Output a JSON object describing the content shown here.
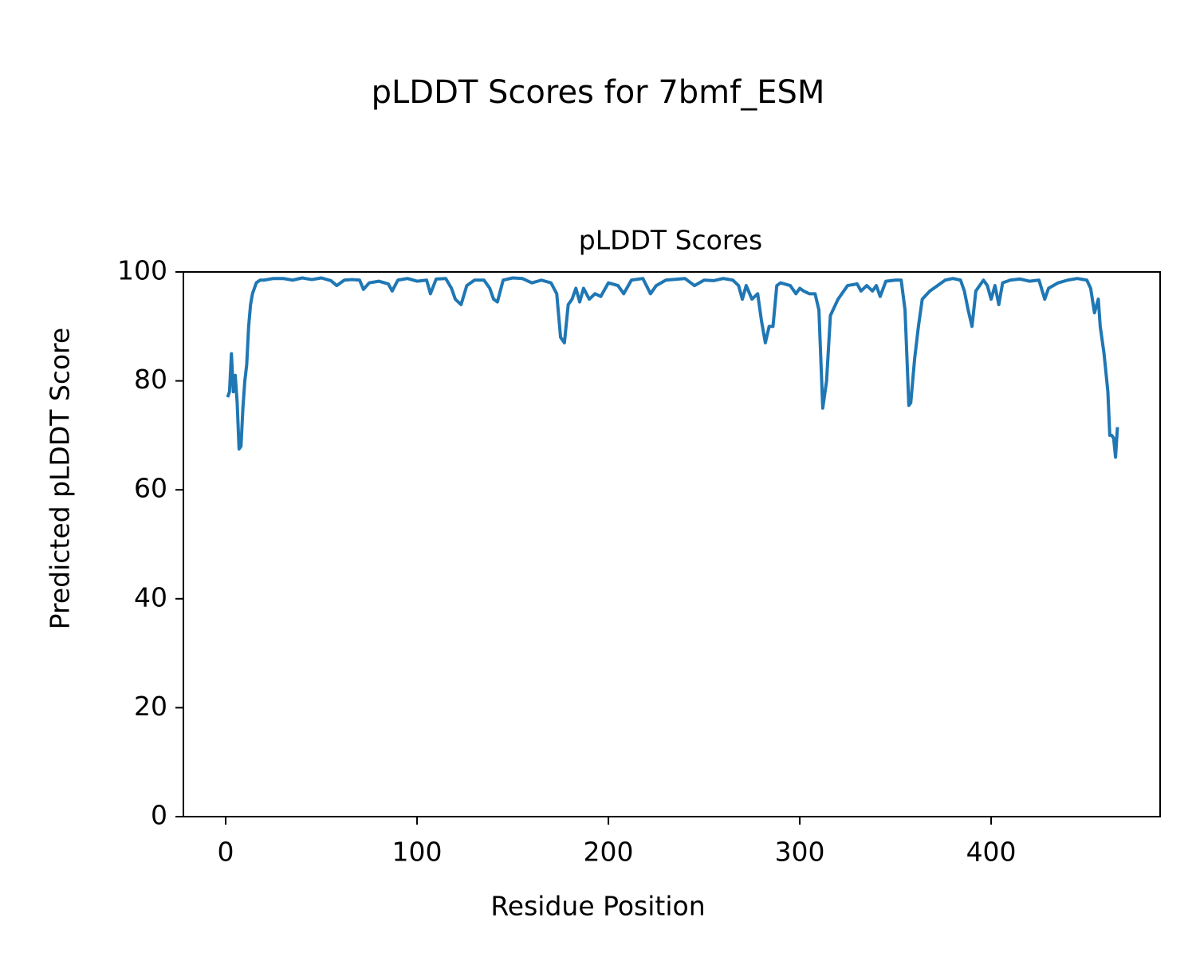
{
  "chart_data": {
    "type": "line",
    "suptitle": "pLDDT Scores for 7bmf_ESM",
    "title": "pLDDT Scores",
    "x_label": "Residue Position",
    "y_label": "Predicted pLDDT Score",
    "xlim": [
      -22.1,
      488.3
    ],
    "ylim": [
      0,
      100
    ],
    "xticks": [
      0,
      100,
      200,
      300,
      400
    ],
    "yticks": [
      0,
      20,
      40,
      60,
      80,
      100
    ],
    "grid": false,
    "series": [
      {
        "name": "pLDDT",
        "color": "#1f77b4",
        "x": [
          1,
          2,
          3,
          4,
          5,
          6,
          7,
          8,
          9,
          10,
          11,
          12,
          13,
          14,
          15,
          16,
          18,
          20,
          25,
          30,
          35,
          40,
          45,
          50,
          55,
          58,
          62,
          66,
          70,
          72,
          75,
          80,
          85,
          87,
          90,
          95,
          100,
          105,
          107,
          110,
          115,
          118,
          120,
          123,
          126,
          130,
          135,
          138,
          140,
          142,
          145,
          150,
          155,
          160,
          165,
          170,
          173,
          175,
          177,
          179,
          181,
          183,
          185,
          187,
          190,
          193,
          196,
          200,
          205,
          208,
          212,
          218,
          222,
          225,
          230,
          240,
          245,
          250,
          255,
          260,
          265,
          268,
          270,
          272,
          275,
          278,
          280,
          282,
          284,
          286,
          288,
          290,
          295,
          298,
          300,
          302,
          305,
          308,
          310,
          312,
          314,
          316,
          320,
          325,
          330,
          332,
          335,
          338,
          340,
          342,
          345,
          350,
          353,
          355,
          357,
          358,
          360,
          362,
          364,
          368,
          372,
          376,
          380,
          384,
          386,
          388,
          390,
          392,
          396,
          398,
          400,
          402,
          404,
          406,
          410,
          415,
          420,
          425,
          428,
          430,
          435,
          440,
          445,
          450,
          452,
          454,
          456,
          457,
          459,
          461,
          462,
          463,
          464,
          465,
          466
        ],
        "values": [
          77,
          78,
          85,
          78,
          81,
          76,
          67.5,
          68,
          75,
          80,
          83,
          90,
          94,
          96,
          97,
          98,
          98.5,
          98.5,
          98.8,
          98.8,
          98.5,
          98.9,
          98.6,
          98.9,
          98.4,
          97.5,
          98.5,
          98.6,
          98.5,
          96.8,
          98,
          98.3,
          97.8,
          96.5,
          98.5,
          98.8,
          98.3,
          98.5,
          96,
          98.7,
          98.8,
          97,
          95,
          94,
          97.5,
          98.5,
          98.5,
          97,
          95,
          94.5,
          98.5,
          98.9,
          98.8,
          98,
          98.5,
          98,
          96,
          88,
          87,
          94,
          95,
          97,
          94.5,
          97,
          95,
          96,
          95.5,
          98,
          97.5,
          96,
          98.5,
          98.8,
          96,
          97.5,
          98.5,
          98.8,
          97.5,
          98.5,
          98.4,
          98.8,
          98.5,
          97.5,
          95,
          97.5,
          95,
          96,
          91,
          87,
          90,
          90,
          97.5,
          98,
          97.5,
          96,
          97,
          96.5,
          96,
          96,
          93,
          75,
          80,
          92,
          95,
          97.5,
          97.8,
          96.5,
          97.5,
          96.5,
          97.5,
          95.5,
          98.3,
          98.5,
          98.5,
          93,
          75.5,
          76,
          84,
          90,
          95,
          96.5,
          97.5,
          98.5,
          98.8,
          98.5,
          96.5,
          93,
          90,
          96.5,
          98.5,
          97.5,
          95,
          97.5,
          94,
          98,
          98.5,
          98.7,
          98.3,
          98.5,
          95,
          97,
          98,
          98.5,
          98.8,
          98.5,
          97,
          92.5,
          95,
          90,
          85,
          78,
          70,
          70,
          69.5,
          66,
          71.5
        ]
      }
    ]
  }
}
